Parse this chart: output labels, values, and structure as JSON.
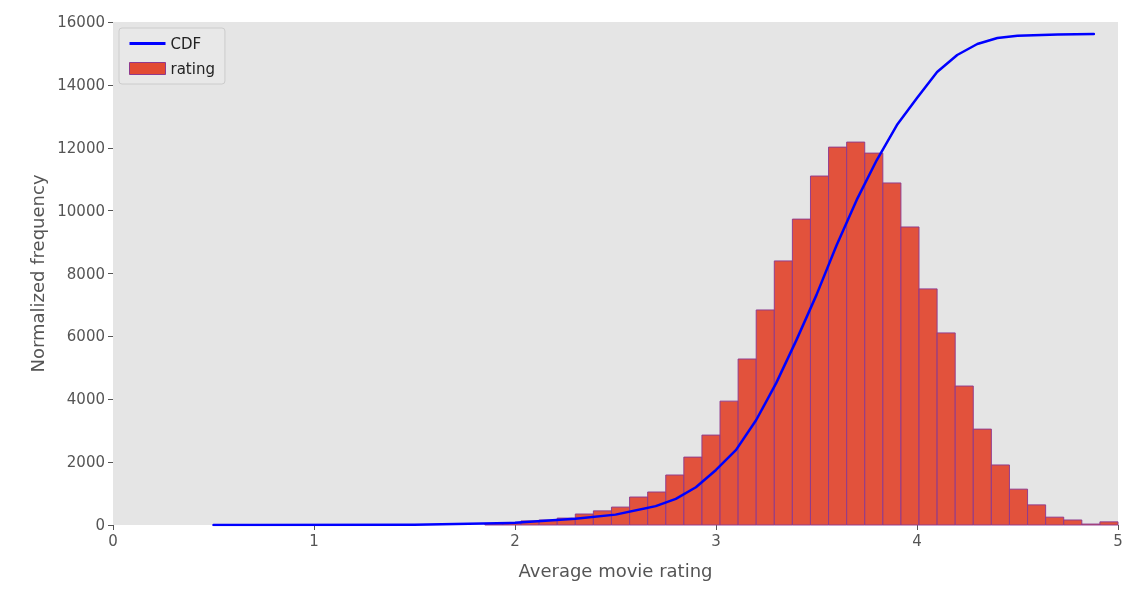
{
  "chart_data": {
    "type": "histogram",
    "xlabel": "Average movie rating",
    "ylabel": "Normalized frequency",
    "bins": [
      0.5,
      0.59,
      0.68,
      0.77,
      0.86,
      0.95,
      1.04,
      1.13,
      1.22,
      1.31,
      1.4,
      1.49,
      1.58,
      1.67,
      1.76,
      1.85,
      1.94,
      2.03,
      2.12,
      2.21,
      2.3,
      2.39,
      2.48,
      2.57,
      2.66,
      2.75,
      2.84,
      2.93,
      3.02,
      3.11,
      3.2,
      3.29,
      3.38,
      3.47,
      3.56,
      3.65,
      3.74,
      3.83,
      3.92,
      4.01,
      4.1,
      4.19,
      4.28,
      4.37,
      4.46,
      4.55,
      4.64,
      4.73,
      4.82,
      4.91,
      5.0
    ],
    "series": [
      {
        "name": "rating",
        "color": "#e24a33",
        "values": [
          null,
          null,
          null,
          null,
          null,
          null,
          null,
          null,
          null,
          null,
          null,
          null,
          null,
          null,
          null,
          40,
          70,
          130,
          160,
          220,
          350,
          450,
          570,
          890,
          1050,
          1590,
          2160,
          2860,
          3940,
          5280,
          6840,
          8400,
          9730,
          11100,
          12020,
          12180,
          11830,
          10880,
          9480,
          7510,
          6110,
          4420,
          3050,
          1910,
          1140,
          640,
          250,
          160,
          30,
          100
        ]
      },
      {
        "name": "CDF",
        "type": "line",
        "color": "#0000ff",
        "x": [
          0.5,
          1.5,
          2.0,
          2.3,
          2.5,
          2.7,
          2.8,
          2.9,
          3.0,
          3.1,
          3.2,
          3.3,
          3.4,
          3.5,
          3.6,
          3.7,
          3.8,
          3.9,
          4.0,
          4.1,
          4.2,
          4.3,
          4.4,
          4.5,
          4.7,
          4.88
        ],
        "values": [
          0,
          10,
          70,
          200,
          330,
          600,
          830,
          1200,
          1750,
          2390,
          3340,
          4520,
          5880,
          7320,
          8900,
          10340,
          11610,
          12720,
          13580,
          14410,
          14950,
          15300,
          15490,
          15560,
          15600,
          15620
        ]
      }
    ],
    "xlim": [
      0,
      5
    ],
    "xticks": [
      0,
      1,
      2,
      3,
      4,
      5
    ],
    "ylim": [
      0,
      16000
    ],
    "yticks": [
      0,
      2000,
      4000,
      6000,
      8000,
      10000,
      12000,
      14000,
      16000
    ],
    "legend": "top left"
  }
}
